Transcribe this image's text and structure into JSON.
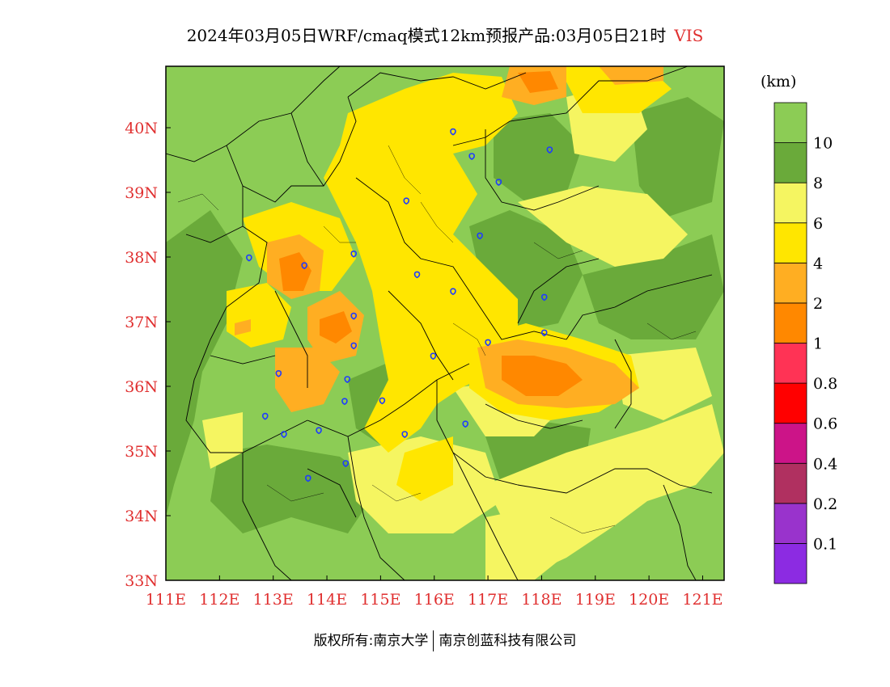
{
  "title": {
    "main": "2024年03月05日WRF/cmaq模式12km预报产品:03月05日21时",
    "variable": "VIS"
  },
  "legend": {
    "unit": "(km)",
    "colors": [
      "#8c2be2",
      "#9933cc",
      "#b03060",
      "#cc1488",
      "#ff0000",
      "#ff3355",
      "#ff8800",
      "#ffae22",
      "#ffe600",
      "#f5f561",
      "#6aaa3a",
      "#8ccc55"
    ],
    "labels": [
      "0.1",
      "0.2",
      "0.4",
      "0.6",
      "0.8",
      "1",
      "2",
      "4",
      "6",
      "8",
      "10"
    ]
  },
  "axes": {
    "x_ticks": [
      "111E",
      "112E",
      "113E",
      "114E",
      "115E",
      "116E",
      "117E",
      "118E",
      "119E",
      "120E",
      "121E"
    ],
    "y_ticks": [
      "33N",
      "34N",
      "35N",
      "36N",
      "37N",
      "38N",
      "39N",
      "40N"
    ],
    "label_color": "#e03030"
  },
  "stations": [
    [
      116.35,
      39.93
    ],
    [
      116.7,
      39.55
    ],
    [
      117.2,
      39.15
    ],
    [
      118.15,
      39.65
    ],
    [
      115.48,
      38.86
    ],
    [
      114.5,
      38.04
    ],
    [
      116.85,
      38.32
    ],
    [
      113.58,
      37.86
    ],
    [
      112.55,
      37.98
    ],
    [
      115.68,
      37.72
    ],
    [
      116.35,
      37.46
    ],
    [
      114.5,
      37.08
    ],
    [
      118.05,
      37.37
    ],
    [
      118.05,
      36.82
    ],
    [
      114.5,
      36.62
    ],
    [
      117.0,
      36.67
    ],
    [
      115.98,
      36.46
    ],
    [
      113.1,
      36.19
    ],
    [
      114.38,
      36.1
    ],
    [
      114.33,
      35.76
    ],
    [
      115.03,
      35.77
    ],
    [
      112.85,
      35.53
    ],
    [
      113.2,
      35.25
    ],
    [
      113.85,
      35.31
    ],
    [
      115.45,
      35.25
    ],
    [
      116.58,
      35.41
    ],
    [
      114.35,
      34.8
    ],
    [
      113.65,
      34.57
    ]
  ],
  "copyright": {
    "left": "版权所有:南京大学",
    "right": "南京创蓝科技有限公司"
  }
}
